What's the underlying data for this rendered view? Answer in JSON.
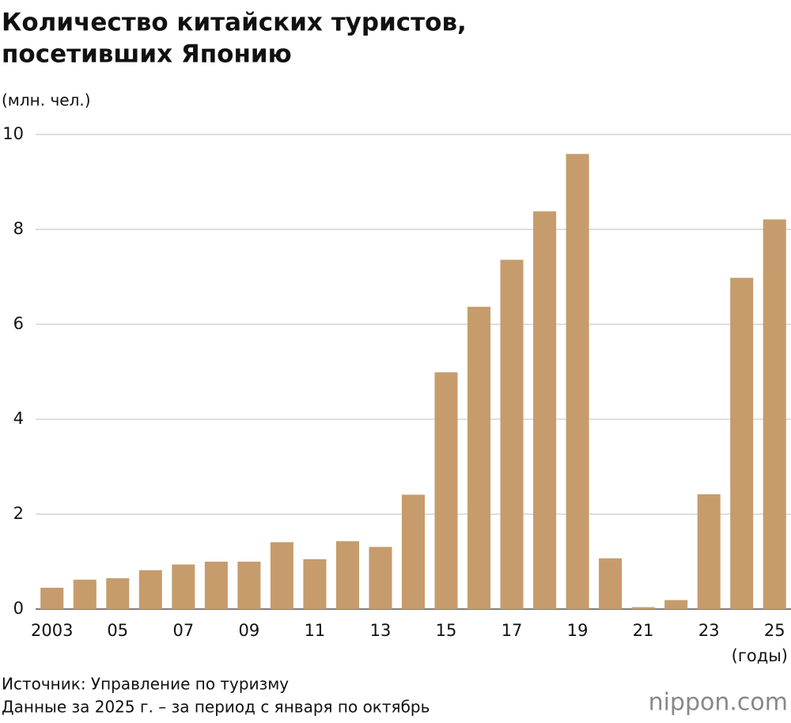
{
  "chart_data": {
    "type": "bar",
    "title": [
      "Количество китайских туристов,",
      "посетивших Японию"
    ],
    "y_label": "(млн. чел.)",
    "x_label": "(годы)",
    "categories": [
      "2003",
      null,
      "05",
      null,
      "07",
      null,
      "09",
      null,
      "11",
      null,
      "13",
      null,
      "15",
      null,
      "17",
      null,
      "19",
      null,
      "21",
      null,
      "23",
      null,
      "25"
    ],
    "values": [
      0.45,
      0.62,
      0.65,
      0.82,
      0.94,
      1.0,
      1.0,
      1.41,
      1.05,
      1.43,
      1.31,
      2.41,
      4.99,
      6.37,
      7.36,
      8.38,
      9.59,
      1.07,
      0.04,
      0.19,
      2.42,
      6.98,
      8.21
    ],
    "color": "#c69c6c",
    "ylim": [
      0,
      10
    ],
    "yticks": [
      0,
      2,
      4,
      6,
      8,
      10
    ],
    "grid": true,
    "notes": [
      "Источник: Управление по туризму",
      "Данные за 2025 г. – за период с января по октябрь"
    ],
    "logo": "nippon.com"
  }
}
